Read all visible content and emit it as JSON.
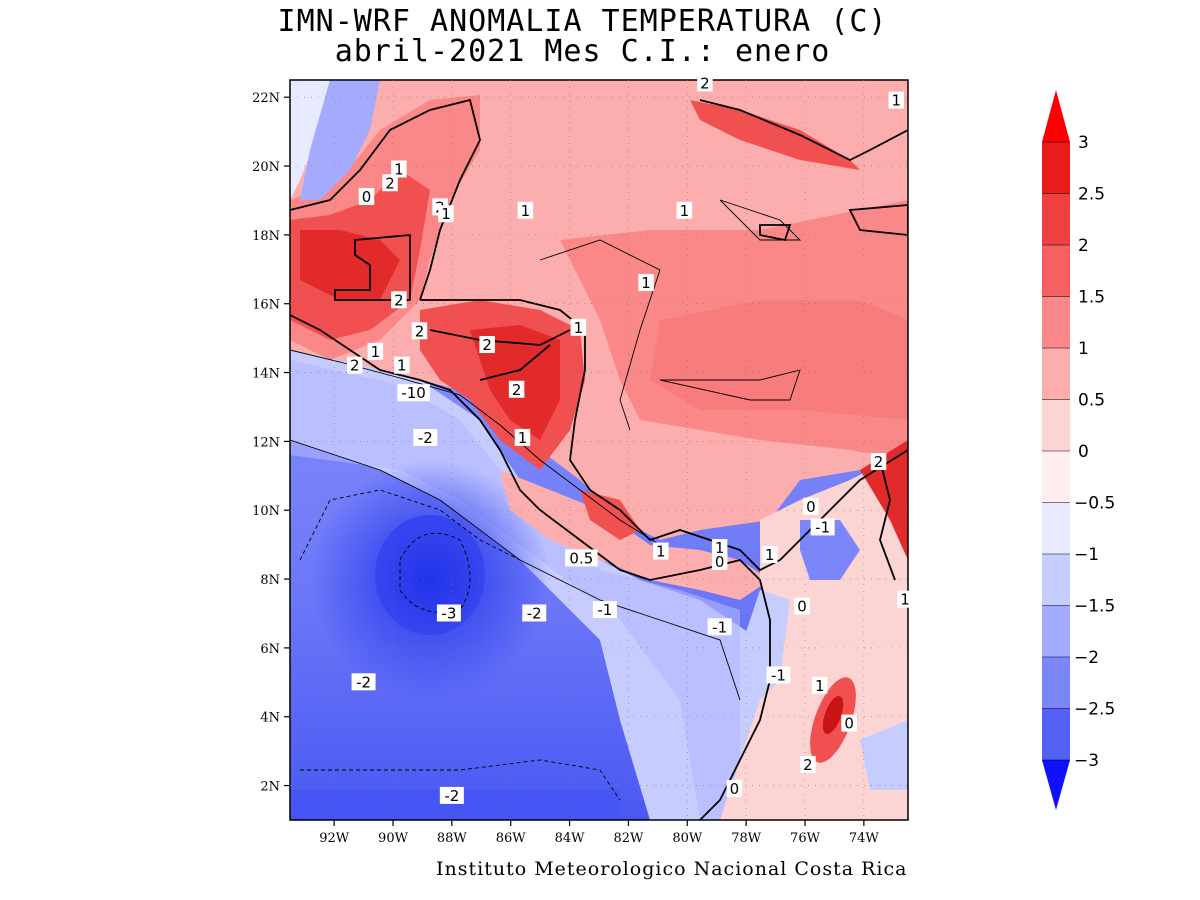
{
  "title": {
    "line1": "IMN-WRF  ANOMALIA TEMPERATURA (C)",
    "line2": "abril-2021 Mes C.I.: enero"
  },
  "credit": "Instituto Meteorologico Nacional Costa Rica",
  "map": {
    "lon_range": [
      -93.5,
      -72.5
    ],
    "lat_range": [
      1,
      22.5
    ],
    "lat_ticks": [
      "22N",
      "20N",
      "18N",
      "16N",
      "14N",
      "12N",
      "10N",
      "8N",
      "6N",
      "4N",
      "2N"
    ],
    "lon_ticks": [
      "92W",
      "90W",
      "88W",
      "86W",
      "84W",
      "82W",
      "80W",
      "78W",
      "76W",
      "74W"
    ],
    "contour_labels": [
      {
        "text": "1",
        "lon": -89.8,
        "lat": 19.9
      },
      {
        "text": "0",
        "lon": -90.9,
        "lat": 19.1
      },
      {
        "text": "2",
        "lon": -90.1,
        "lat": 19.5
      },
      {
        "text": "2",
        "lon": -88.4,
        "lat": 18.8
      },
      {
        "text": "1",
        "lon": -88.2,
        "lat": 18.6
      },
      {
        "text": "1",
        "lon": -85.5,
        "lat": 18.7
      },
      {
        "text": "1",
        "lon": -80.1,
        "lat": 18.7
      },
      {
        "text": "2",
        "lon": -79.4,
        "lat": 22.4
      },
      {
        "text": "1",
        "lon": -72.9,
        "lat": 21.9
      },
      {
        "text": "1",
        "lon": -81.4,
        "lat": 16.6
      },
      {
        "text": "2",
        "lon": -89.8,
        "lat": 16.1
      },
      {
        "text": "2",
        "lon": -89.1,
        "lat": 15.2
      },
      {
        "text": "2",
        "lon": -86.8,
        "lat": 14.8
      },
      {
        "text": "1",
        "lon": -83.7,
        "lat": 15.3
      },
      {
        "text": "1",
        "lon": -90.6,
        "lat": 14.6
      },
      {
        "text": "2",
        "lon": -91.3,
        "lat": 14.2
      },
      {
        "text": "1",
        "lon": -89.7,
        "lat": 14.2
      },
      {
        "text": "-10",
        "lon": -89.3,
        "lat": 13.4
      },
      {
        "text": "2",
        "lon": -85.8,
        "lat": 13.5
      },
      {
        "text": "-2",
        "lon": -88.9,
        "lat": 12.1
      },
      {
        "text": "1",
        "lon": -85.6,
        "lat": 12.1
      },
      {
        "text": "2",
        "lon": -73.5,
        "lat": 11.4
      },
      {
        "text": "0",
        "lon": -75.8,
        "lat": 10.1
      },
      {
        "text": "-1",
        "lon": -75.4,
        "lat": 9.5
      },
      {
        "text": "1",
        "lon": -80.9,
        "lat": 8.8
      },
      {
        "text": "1",
        "lon": -78.9,
        "lat": 8.9
      },
      {
        "text": "0",
        "lon": -78.9,
        "lat": 8.5
      },
      {
        "text": "1",
        "lon": -77.2,
        "lat": 8.7
      },
      {
        "text": "0.5",
        "lon": -83.6,
        "lat": 8.6
      },
      {
        "text": "-1",
        "lon": -82.8,
        "lat": 7.1
      },
      {
        "text": "-2",
        "lon": -85.2,
        "lat": 7.0
      },
      {
        "text": "-3",
        "lon": -88.1,
        "lat": 7.0
      },
      {
        "text": "0",
        "lon": -76.1,
        "lat": 7.2
      },
      {
        "text": "-1",
        "lon": -78.9,
        "lat": 6.6
      },
      {
        "text": "-1",
        "lon": -76.9,
        "lat": 5.2
      },
      {
        "text": "1",
        "lon": -75.5,
        "lat": 4.9
      },
      {
        "text": "-2",
        "lon": -91.0,
        "lat": 5.0
      },
      {
        "text": "0",
        "lon": -74.5,
        "lat": 3.8
      },
      {
        "text": "2",
        "lon": -75.9,
        "lat": 2.6
      },
      {
        "text": "0",
        "lon": -78.4,
        "lat": 1.9
      },
      {
        "text": "-2",
        "lon": -88.0,
        "lat": 1.7
      },
      {
        "text": "1",
        "lon": -72.6,
        "lat": 7.4
      }
    ]
  },
  "colorbar": {
    "labels": [
      "3",
      "2.5",
      "2",
      "1.5",
      "1",
      "0.5",
      "0",
      "-0.5",
      "-1",
      "-1.5",
      "-2",
      "-2.5",
      "-3"
    ],
    "colors": [
      "#e81c1c",
      "#f03f3f",
      "#f66060",
      "#fa8888",
      "#fcaeae",
      "#fdd4d4",
      "#ffeeee",
      "#e8eaff",
      "#c7ccff",
      "#a4abff",
      "#7c86fb",
      "#5260f5",
      "#2a3af0"
    ],
    "top_color": "#ff0000",
    "bottom_color": "#1010ff"
  }
}
